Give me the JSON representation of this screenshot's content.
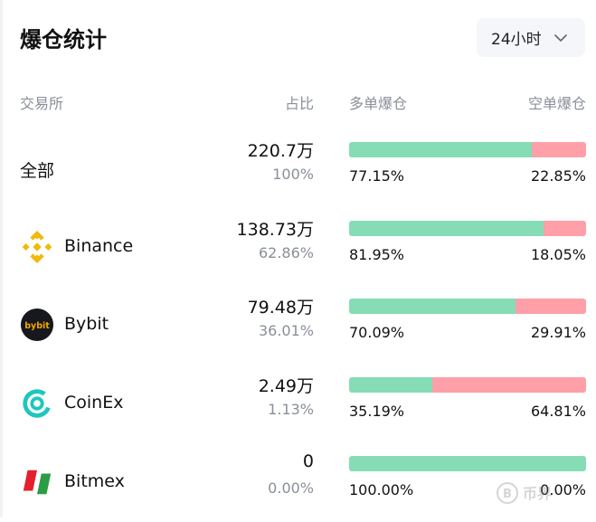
{
  "title": "爆仓统计",
  "period": {
    "selected": "24小时"
  },
  "headers": {
    "exchange": "交易所",
    "share": "占比",
    "long": "多单爆仓",
    "short": "空单爆仓"
  },
  "rows": [
    {
      "name": "全部",
      "amount": "220.7万",
      "share": "100%",
      "long_pct": "77.15%",
      "short_pct": "22.85%",
      "long_value": 77.15,
      "logo": "none"
    },
    {
      "name": "Binance",
      "amount": "138.73万",
      "share": "62.86%",
      "long_pct": "81.95%",
      "short_pct": "18.05%",
      "long_value": 81.95,
      "logo": "binance-logo-icon"
    },
    {
      "name": "Bybit",
      "amount": "79.48万",
      "share": "36.01%",
      "long_pct": "70.09%",
      "short_pct": "29.91%",
      "long_value": 70.09,
      "logo": "bybit-logo-icon"
    },
    {
      "name": "CoinEx",
      "amount": "2.49万",
      "share": "1.13%",
      "long_pct": "35.19%",
      "short_pct": "64.81%",
      "long_value": 35.19,
      "logo": "coinex-logo-icon"
    },
    {
      "name": "Bitmex",
      "amount": "0",
      "share": "0.00%",
      "long_pct": "100.00%",
      "short_pct": "0.00%",
      "long_value": 100.0,
      "logo": "bitmex-logo-icon"
    }
  ],
  "logos": {
    "bybit_text": "bybit"
  },
  "watermark": {
    "text": "币界"
  },
  "colors": {
    "long": "#86dcb5",
    "short": "#ff9fa7",
    "binance": "#f0b90b",
    "bybit_bg": "#17181e",
    "bybit_text": "#f7a600",
    "coinex": "#1ec6bd",
    "bitmex_red": "#e3202b",
    "bitmex_green": "#2a9d45"
  }
}
